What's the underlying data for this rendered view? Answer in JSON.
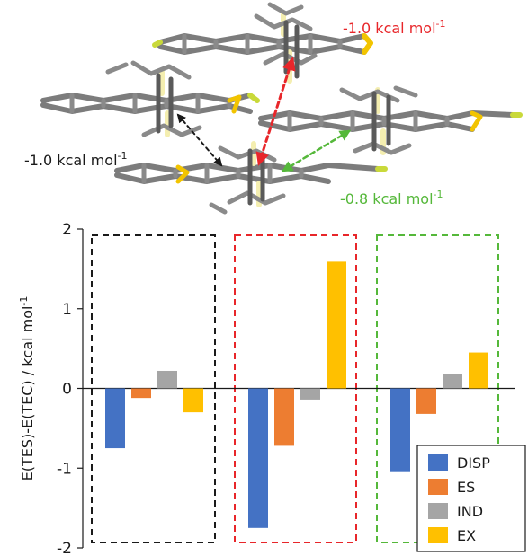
{
  "annotations": [
    {
      "text": "-1.0 kcal mol",
      "sup": "-1",
      "color": "#e8262a"
    },
    {
      "text": "-1.0 kcal mol",
      "sup": "-1",
      "color": "#1a1a1a"
    },
    {
      "text": "-0.8 kcal mol",
      "sup": "-1",
      "color": "#55b83a"
    }
  ],
  "chart_data": {
    "type": "bar",
    "title": "",
    "xlabel": "",
    "ylabel": "E(TES)-E(TEC) / kcal mol",
    "ylabel_sup": "-1",
    "ylim": [
      -2,
      2
    ],
    "yticks": [
      "2",
      "1",
      "0",
      "-1",
      "-2"
    ],
    "yticks_values": [
      2,
      1,
      0,
      -1,
      -2
    ],
    "groups": [
      {
        "frame_color": "#1a1a1a",
        "values": [
          -0.75,
          -0.12,
          0.22,
          -0.3
        ]
      },
      {
        "frame_color": "#e8262a",
        "values": [
          -1.75,
          -0.72,
          -0.14,
          1.59
        ]
      },
      {
        "frame_color": "#55b83a",
        "values": [
          -1.05,
          -0.32,
          0.18,
          0.45
        ]
      }
    ],
    "series": [
      {
        "name": "DISP",
        "color": "#4472c4"
      },
      {
        "name": "ES",
        "color": "#ed7d31"
      },
      {
        "name": "IND",
        "color": "#a5a5a5"
      },
      {
        "name": "EX",
        "color": "#ffc000"
      }
    ],
    "legend_position": "bottom-right"
  }
}
